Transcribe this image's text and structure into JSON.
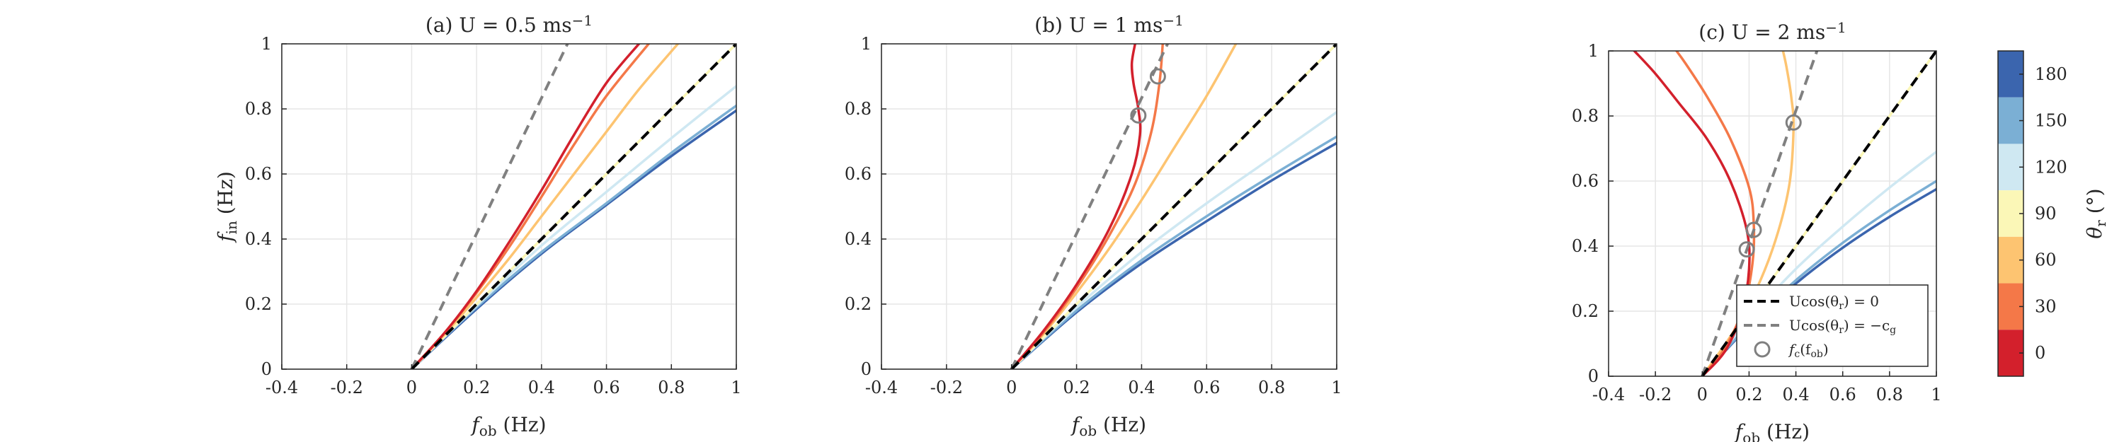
{
  "figure": {
    "colorbar": {
      "label": "θ",
      "label_sub": "r",
      "label_unit": "(°)",
      "ticks": [
        "180",
        "150",
        "120",
        "90",
        "60",
        "30",
        "0"
      ],
      "colors": [
        "#3b65ae",
        "#7bafd4",
        "#cfe8f2",
        "#fbf7b7",
        "#fdc471",
        "#f47848",
        "#d3202c"
      ]
    },
    "legend": {
      "items": [
        {
          "label": "Ucos(θ",
          "sub": "r",
          "tail": ") = 0"
        },
        {
          "label": "Ucos(θ",
          "sub": "r",
          "tail": ") = −c",
          "tail_sub": "g"
        },
        {
          "label": "f",
          "sub": "c",
          "tail": "(f",
          "tail_sub": "ob",
          "tail2": ")"
        }
      ]
    }
  },
  "chart_data": [
    {
      "type": "line",
      "title": "(a) U = 0.5 ms",
      "title_sup": "−1",
      "xlabel": "f",
      "xlabel_sub": "ob",
      "xlabel_unit": " (Hz)",
      "ylabel": "f",
      "ylabel_sub": "in",
      "ylabel_unit": " (Hz)",
      "xlim": [
        -0.4,
        1
      ],
      "ylim": [
        0,
        1
      ],
      "xticks": [
        "-0.4",
        "-0.2",
        "0",
        "0.2",
        "0.4",
        "0.6",
        "0.8",
        "1"
      ],
      "yticks": [
        "0",
        "0.2",
        "0.4",
        "0.6",
        "0.8",
        "1"
      ],
      "grid": true,
      "series": [
        {
          "theta": 0,
          "color": "#d3202c",
          "x": [
            0,
            0.1,
            0.2,
            0.3,
            0.4,
            0.5,
            0.6,
            0.7
          ],
          "y": [
            0,
            0.11,
            0.24,
            0.39,
            0.55,
            0.72,
            0.88,
            1.0
          ]
        },
        {
          "theta": 30,
          "color": "#f47848",
          "x": [
            0,
            0.1,
            0.2,
            0.3,
            0.4,
            0.5,
            0.6,
            0.73
          ],
          "y": [
            0,
            0.11,
            0.235,
            0.375,
            0.53,
            0.69,
            0.84,
            1.0
          ]
        },
        {
          "theta": 60,
          "color": "#fdc471",
          "x": [
            0,
            0.1,
            0.2,
            0.3,
            0.4,
            0.5,
            0.6,
            0.7,
            0.82
          ],
          "y": [
            0,
            0.105,
            0.22,
            0.34,
            0.47,
            0.6,
            0.73,
            0.86,
            1.0
          ]
        },
        {
          "theta": 90,
          "color": "#fbf7b7",
          "x": [
            0,
            1
          ],
          "y": [
            0,
            1
          ]
        },
        {
          "theta": 120,
          "color": "#cfe8f2",
          "x": [
            0,
            0.2,
            0.4,
            0.6,
            0.8,
            1.0
          ],
          "y": [
            0,
            0.195,
            0.38,
            0.545,
            0.71,
            0.87
          ]
        },
        {
          "theta": 150,
          "color": "#7bafd4",
          "x": [
            0,
            0.2,
            0.4,
            0.6,
            0.8,
            1.0
          ],
          "y": [
            0,
            0.19,
            0.36,
            0.51,
            0.665,
            0.81
          ]
        },
        {
          "theta": 180,
          "color": "#3b65ae",
          "x": [
            0,
            0.2,
            0.4,
            0.6,
            0.8,
            1.0
          ],
          "y": [
            0,
            0.185,
            0.355,
            0.505,
            0.655,
            0.795
          ]
        }
      ],
      "ref_zero": {
        "x": [
          0,
          1
        ],
        "y": [
          0,
          1
        ]
      },
      "ref_cg": {
        "x": [
          0,
          0.48
        ],
        "y": [
          0,
          1
        ]
      },
      "markers": []
    },
    {
      "type": "line",
      "title": "(b) U = 1 ms",
      "title_sup": "−1",
      "xlabel": "f",
      "xlabel_sub": "ob",
      "xlabel_unit": " (Hz)",
      "ylabel": "",
      "ylabel_sub": "",
      "ylabel_unit": "",
      "xlim": [
        -0.4,
        1
      ],
      "ylim": [
        0,
        1
      ],
      "xticks": [
        "-0.4",
        "-0.2",
        "0",
        "0.2",
        "0.4",
        "0.6",
        "0.8",
        "1"
      ],
      "yticks": [
        "0",
        "0.2",
        "0.4",
        "0.6",
        "0.8",
        "1"
      ],
      "grid": true,
      "series": [
        {
          "theta": 0,
          "color": "#d3202c",
          "x": [
            0,
            0.1,
            0.2,
            0.3,
            0.37,
            0.395,
            0.39,
            0.375,
            0.37,
            0.38
          ],
          "y": [
            0,
            0.12,
            0.26,
            0.43,
            0.6,
            0.72,
            0.8,
            0.88,
            0.94,
            1.0
          ]
        },
        {
          "theta": 30,
          "color": "#f47848",
          "x": [
            0,
            0.1,
            0.2,
            0.3,
            0.38,
            0.43,
            0.455,
            0.465
          ],
          "y": [
            0,
            0.115,
            0.25,
            0.41,
            0.57,
            0.73,
            0.88,
            1.0
          ]
        },
        {
          "theta": 60,
          "color": "#fdc471",
          "x": [
            0,
            0.1,
            0.2,
            0.3,
            0.4,
            0.5,
            0.6,
            0.69
          ],
          "y": [
            0,
            0.11,
            0.235,
            0.37,
            0.52,
            0.68,
            0.84,
            1.0
          ]
        },
        {
          "theta": 90,
          "color": "#fbf7b7",
          "x": [
            0,
            1
          ],
          "y": [
            0,
            1
          ]
        },
        {
          "theta": 120,
          "color": "#cfe8f2",
          "x": [
            0,
            0.2,
            0.4,
            0.6,
            0.8,
            1.0
          ],
          "y": [
            0,
            0.19,
            0.36,
            0.51,
            0.65,
            0.79
          ]
        },
        {
          "theta": 150,
          "color": "#7bafd4",
          "x": [
            0,
            0.2,
            0.4,
            0.6,
            0.8,
            1.0
          ],
          "y": [
            0,
            0.18,
            0.335,
            0.47,
            0.595,
            0.715
          ]
        },
        {
          "theta": 180,
          "color": "#3b65ae",
          "x": [
            0,
            0.2,
            0.4,
            0.6,
            0.8,
            1.0
          ],
          "y": [
            0,
            0.175,
            0.325,
            0.455,
            0.58,
            0.695
          ]
        }
      ],
      "ref_zero": {
        "x": [
          0,
          1
        ],
        "y": [
          0,
          1
        ]
      },
      "ref_cg": {
        "x": [
          0,
          0.48
        ],
        "y": [
          0,
          1
        ]
      },
      "markers": [
        {
          "x": 0.39,
          "y": 0.78
        },
        {
          "x": 0.45,
          "y": 0.9
        }
      ]
    },
    {
      "type": "line",
      "title": "(c) U = 2 ms",
      "title_sup": "−1",
      "xlabel": "f",
      "xlabel_sub": "ob",
      "xlabel_unit": " (Hz)",
      "ylabel": "",
      "ylabel_sub": "",
      "ylabel_unit": "",
      "xlim": [
        -0.4,
        1
      ],
      "ylim": [
        0,
        1
      ],
      "xticks": [
        "-0.4",
        "-0.2",
        "0",
        "0.2",
        "0.4",
        "0.6",
        "0.8",
        "1"
      ],
      "yticks": [
        "0",
        "0.2",
        "0.4",
        "0.6",
        "0.8",
        "1"
      ],
      "grid": true,
      "series": [
        {
          "theta": 0,
          "color": "#d3202c",
          "x": [
            0,
            0.1,
            0.17,
            0.2,
            0.19,
            0.12,
            0.02,
            -0.1,
            -0.2,
            -0.29
          ],
          "y": [
            0,
            0.08,
            0.2,
            0.33,
            0.45,
            0.6,
            0.73,
            0.84,
            0.93,
            1.0
          ]
        },
        {
          "theta": 30,
          "color": "#f47848",
          "x": [
            0,
            0.1,
            0.18,
            0.215,
            0.22,
            0.2,
            0.12,
            0.02,
            -0.07,
            -0.11
          ],
          "y": [
            0,
            0.09,
            0.22,
            0.35,
            0.47,
            0.58,
            0.73,
            0.86,
            0.96,
            1.0
          ]
        },
        {
          "theta": 60,
          "color": "#fdc471",
          "x": [
            0,
            0.1,
            0.2,
            0.3,
            0.37,
            0.39,
            0.38,
            0.36,
            0.345
          ],
          "y": [
            0,
            0.1,
            0.22,
            0.39,
            0.58,
            0.76,
            0.86,
            0.95,
            1.0
          ]
        },
        {
          "theta": 90,
          "color": "#fbf7b7",
          "x": [
            0,
            1
          ],
          "y": [
            0,
            1
          ]
        },
        {
          "theta": 120,
          "color": "#cfe8f2",
          "x": [
            0,
            0.2,
            0.4,
            0.6,
            0.8,
            1.0
          ],
          "y": [
            0,
            0.175,
            0.33,
            0.46,
            0.58,
            0.69
          ]
        },
        {
          "theta": 150,
          "color": "#7bafd4",
          "x": [
            0,
            0.2,
            0.4,
            0.6,
            0.8,
            1.0
          ],
          "y": [
            0,
            0.16,
            0.295,
            0.41,
            0.51,
            0.6
          ]
        },
        {
          "theta": 180,
          "color": "#3b65ae",
          "x": [
            0,
            0.2,
            0.4,
            0.6,
            0.8,
            1.0
          ],
          "y": [
            0,
            0.155,
            0.285,
            0.395,
            0.49,
            0.575
          ]
        }
      ],
      "ref_zero": {
        "x": [
          0,
          1
        ],
        "y": [
          0,
          1
        ]
      },
      "ref_cg": {
        "x": [
          0,
          0.49
        ],
        "y": [
          0,
          1
        ]
      },
      "markers": [
        {
          "x": 0.19,
          "y": 0.39
        },
        {
          "x": 0.22,
          "y": 0.45
        },
        {
          "x": 0.39,
          "y": 0.78
        }
      ]
    }
  ]
}
